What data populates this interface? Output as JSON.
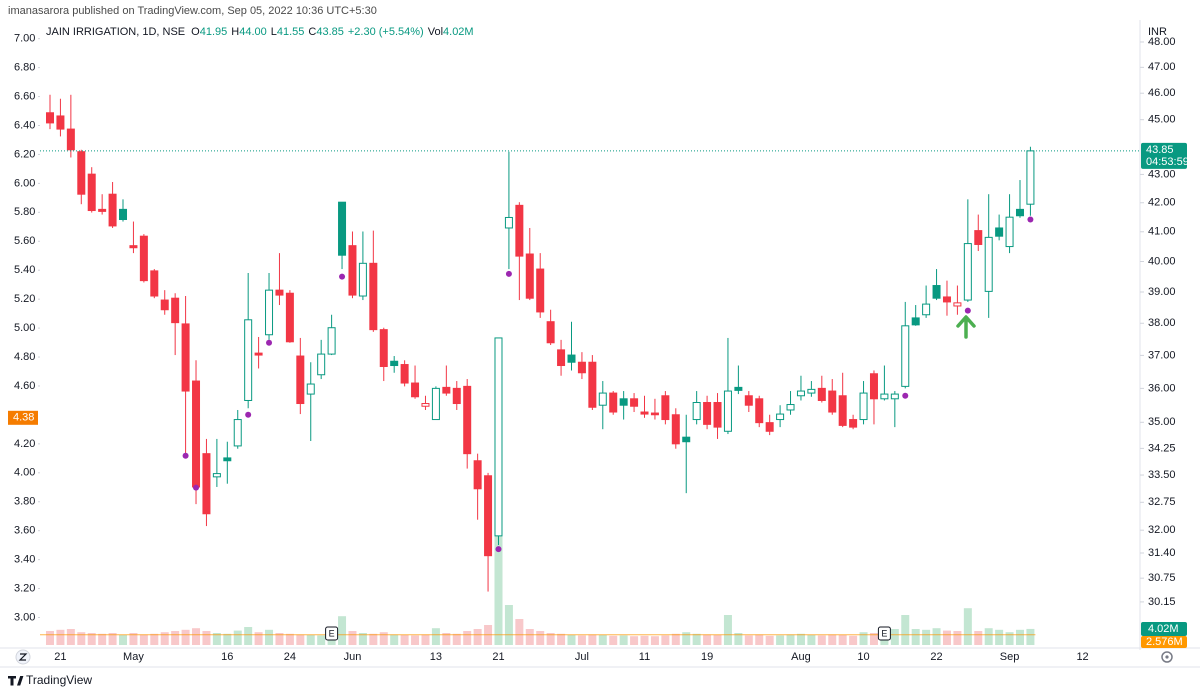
{
  "header": {
    "author_line": "imanasarora published on TradingView.com, Sep 05, 2022 10:36 UTC+5:30",
    "footer": "TradingView"
  },
  "chart_data": {
    "type": "candlestick",
    "title": "JAIN IRRIGATION, 1D, NSE",
    "legend": [
      {
        "key": "O",
        "value": "41.95"
      },
      {
        "key": "H",
        "value": "44.00"
      },
      {
        "key": "L",
        "value": "41.55"
      },
      {
        "key": "C",
        "value": "43.85"
      }
    ],
    "change": "+2.30 (+5.54%)",
    "volume_legend": {
      "key": "Vol",
      "value": "4.02M"
    },
    "categories": [
      null,
      "21",
      null,
      null,
      null,
      null,
      null,
      null,
      "May",
      null,
      null,
      null,
      null,
      null,
      null,
      null,
      null,
      "16",
      null,
      null,
      null,
      null,
      null,
      "24",
      null,
      null,
      null,
      null,
      null,
      "Jun",
      null,
      null,
      null,
      null,
      null,
      null,
      null,
      "13",
      null,
      null,
      null,
      null,
      null,
      "21",
      null,
      null,
      null,
      null,
      null,
      null,
      null,
      "Jul",
      null,
      null,
      null,
      null,
      null,
      "11",
      null,
      null,
      null,
      null,
      null,
      "19",
      null,
      null,
      null,
      null,
      null,
      null,
      null,
      null,
      "Aug",
      null,
      null,
      null,
      null,
      null,
      "10",
      null,
      null,
      null,
      null,
      null,
      null,
      "22",
      null,
      null,
      null,
      null,
      null,
      null,
      "Sep",
      null,
      null,
      null,
      null,
      null,
      null,
      "12"
    ],
    "open": [
      45.26,
      45.14,
      44.65,
      43.82,
      43.01,
      41.77,
      42.3,
      41.77,
      40.53,
      40.85,
      39.69,
      38.74,
      38.8,
      37.98,
      36.22,
      34.1,
      33.45,
      33.98,
      34.32,
      35.64,
      37.07,
      37.64,
      39.06,
      38.96,
      36.98,
      35.83,
      36.41,
      37.04,
      42.02,
      40.53,
      38.87,
      39.94,
      37.8,
      36.82,
      36.72,
      36.16,
      35.47,
      35.08,
      36.03,
      36.0,
      36.06,
      33.9,
      33.48,
      31.85,
      41.13,
      41.91,
      40.25,
      39.75,
      38.05,
      37.17,
      37.01,
      36.79,
      36.79,
      35.5,
      35.86,
      35.69,
      35.69,
      35.3,
      35.27,
      35.78,
      35.22,
      34.57,
      35.08,
      35.58,
      35.58,
      34.74,
      36.03,
      35.78,
      35.69,
      34.99,
      35.08,
      35.36,
      35.78,
      35.86,
      36.0,
      35.92,
      35.78,
      35.08,
      35.08,
      36.44,
      35.69,
      35.69,
      36.06,
      38.17,
      38.27,
      39.21,
      38.84,
      38.55,
      38.74,
      41.04,
      39.02,
      41.13,
      40.5,
      41.77,
      41.95,
      null,
      null,
      null,
      null,
      null
    ],
    "high": [
      45.94,
      45.79,
      45.94,
      43.89,
      43.26,
      42.3,
      42.73,
      42.12,
      41.35,
      40.92,
      39.75,
      39.06,
      38.96,
      38.87,
      36.85,
      34.52,
      34.52,
      34.44,
      35.36,
      39.62,
      37.57,
      39.62,
      40.28,
      39.06,
      37.54,
      36.79,
      37.48,
      38.27,
      42.02,
      41.01,
      41.01,
      41.04,
      37.86,
      36.98,
      36.85,
      36.69,
      35.78,
      36.06,
      36.69,
      36.22,
      36.28,
      34.1,
      33.56,
      37.54,
      43.82,
      42.02,
      41.13,
      40.28,
      38.43,
      37.48,
      38.05,
      37.1,
      37.01,
      36.22,
      35.92,
      35.92,
      35.86,
      35.78,
      35.69,
      35.92,
      35.41,
      35.22,
      35.92,
      35.78,
      35.86,
      37.54,
      36.69,
      35.92,
      35.78,
      35.22,
      35.5,
      35.92,
      36.38,
      36.22,
      36.38,
      36.28,
      36.47,
      35.22,
      36.22,
      36.54,
      36.69,
      35.92,
      38.68,
      38.58,
      39.21,
      39.75,
      39.37,
      39.21,
      42.12,
      41.59,
      42.3,
      41.59,
      42.3,
      42.8,
      44.0,
      null,
      null,
      null,
      null,
      null
    ],
    "low": [
      44.65,
      44.38,
      43.61,
      41.95,
      41.66,
      41.59,
      41.13,
      41.35,
      40.28,
      39.31,
      38.8,
      38.27,
      37.01,
      34.1,
      32.7,
      32.11,
      33.17,
      33.26,
      34.24,
      35.41,
      36.6,
      37.48,
      38.58,
      37.39,
      35.24,
      34.46,
      36.28,
      37.01,
      39.75,
      38.8,
      38.74,
      37.73,
      36.22,
      36.47,
      36.06,
      35.69,
      35.36,
      35.08,
      35.78,
      35.36,
      33.68,
      32.28,
      30.41,
      31.61,
      39.75,
      38.74,
      38.74,
      38.17,
      37.32,
      36.38,
      36.54,
      36.28,
      35.36,
      34.8,
      35.22,
      35.08,
      35.3,
      35.13,
      35.08,
      34.94,
      34.24,
      33.0,
      34.94,
      34.8,
      34.52,
      34.66,
      35.83,
      35.3,
      34.86,
      34.63,
      34.86,
      35.22,
      35.64,
      35.75,
      35.58,
      35.22,
      34.86,
      34.8,
      34.94,
      34.94,
      35.64,
      34.86,
      36.0,
      37.92,
      38.17,
      38.74,
      38.24,
      38.27,
      38.68,
      40.35,
      38.17,
      40.71,
      40.28,
      41.48,
      41.55,
      null,
      null,
      null,
      null,
      null
    ],
    "close": [
      44.88,
      44.65,
      43.89,
      42.3,
      41.73,
      41.7,
      41.2,
      41.42,
      40.46,
      39.37,
      38.87,
      38.43,
      38.02,
      35.92,
      33.17,
      32.44,
      33.54,
      33.9,
      35.08,
      38.11,
      37.01,
      39.06,
      38.9,
      37.42,
      35.55,
      36.13,
      37.04,
      37.86,
      40.21,
      38.9,
      39.94,
      37.8,
      36.66,
      36.69,
      36.16,
      35.75,
      35.55,
      36.0,
      35.86,
      35.55,
      34.1,
      33.12,
      31.33,
      37.54,
      41.49,
      40.18,
      38.8,
      38.36,
      37.39,
      36.69,
      36.79,
      36.47,
      35.44,
      35.86,
      35.3,
      35.5,
      35.47,
      35.24,
      35.22,
      35.08,
      34.38,
      34.44,
      35.58,
      34.94,
      34.86,
      35.92,
      35.94,
      35.5,
      34.99,
      34.74,
      35.24,
      35.52,
      35.92,
      35.97,
      35.64,
      35.3,
      34.91,
      34.86,
      35.86,
      35.69,
      35.83,
      35.83,
      37.92,
      37.95,
      38.61,
      38.8,
      38.68,
      38.65,
      40.6,
      40.57,
      40.81,
      40.85,
      41.5,
      41.55,
      43.85,
      null,
      null,
      null,
      null,
      null
    ],
    "up_color": "#089981",
    "down_color": "#f23645",
    "ylim": [
      29.09,
      48.48
    ],
    "log_scale": true,
    "y_unit": "INR",
    "yticks": [
      {
        "value": 48,
        "label": "48.00"
      },
      {
        "value": 47,
        "label": "47.00"
      },
      {
        "value": 46,
        "label": "46.00"
      },
      {
        "value": 45,
        "label": "45.00"
      },
      {
        "value": 43,
        "label": "43.00"
      },
      {
        "value": 42,
        "label": "42.00"
      },
      {
        "value": 41,
        "label": "41.00"
      },
      {
        "value": 40,
        "label": "40.00"
      },
      {
        "value": 39,
        "label": "39.00"
      },
      {
        "value": 38,
        "label": "38.00"
      },
      {
        "value": 37,
        "label": "37.00"
      },
      {
        "value": 36,
        "label": "36.00"
      },
      {
        "value": 35,
        "label": "35.00"
      },
      34.25,
      {
        "value": 33.5,
        "label": "33.50"
      },
      32.75,
      {
        "value": 32,
        "label": "32.00"
      },
      {
        "value": 31.4,
        "label": "31.40"
      },
      30.75,
      30.15
    ],
    "y2lim": [
      2.81,
      7.06
    ],
    "y2ticks": [
      {
        "value": 7,
        "label": "7.00"
      },
      {
        "value": 6.8,
        "label": "6.80"
      },
      {
        "value": 6.6,
        "label": "6.60"
      },
      {
        "value": 6.4,
        "label": "6.40"
      },
      {
        "value": 6.2,
        "label": "6.20"
      },
      {
        "value": 6,
        "label": "6.00"
      },
      {
        "value": 5.8,
        "label": "5.80"
      },
      {
        "value": 5.6,
        "label": "5.60"
      },
      {
        "value": 5.4,
        "label": "5.40"
      },
      {
        "value": 5.2,
        "label": "5.20"
      },
      {
        "value": 5,
        "label": "5.00"
      },
      {
        "value": 4.8,
        "label": "4.80"
      },
      {
        "value": 4.6,
        "label": "4.60"
      },
      {
        "value": 4.2,
        "label": "4.20"
      },
      {
        "value": 4,
        "label": "4.00"
      },
      {
        "value": 3.8,
        "label": "3.80"
      },
      {
        "value": 3.6,
        "label": "3.60"
      },
      {
        "value": 3.4,
        "label": "3.40"
      },
      {
        "value": 3.2,
        "label": "3.20"
      },
      {
        "value": 3,
        "label": "3.00"
      }
    ],
    "y2_marker": 4.38,
    "y2_marker_color": "#f57c00",
    "markers": {
      "x": [
        13,
        14,
        19,
        21,
        28,
        43,
        44,
        82,
        88,
        94
      ],
      "values": [
        34.04,
        33.15,
        35.22,
        37.39,
        39.5,
        31.5,
        39.59,
        35.78,
        38.4,
        41.42
      ],
      "color": "#9c27b0"
    },
    "countdown": "04:53:59",
    "volume": {
      "values": [
        3.5,
        3.8,
        4,
        3.2,
        3,
        2.8,
        3,
        2.5,
        3,
        2.6,
        2.8,
        3.2,
        3.5,
        3.8,
        4.2,
        3.5,
        3,
        2.8,
        3.6,
        4.5,
        3.2,
        3.8,
        3,
        2.8,
        2.6,
        2.5,
        2.4,
        2.8,
        7.2,
        3.5,
        3,
        2.8,
        3.2,
        2.6,
        2.5,
        2.4,
        2.6,
        4.2,
        3,
        2.8,
        3.5,
        4,
        5,
        39,
        10,
        6.5,
        4,
        3.5,
        3,
        2.8,
        2.5,
        2.4,
        2.6,
        2.5,
        2.3,
        2.4,
        2.2,
        2.3,
        2.2,
        2.4,
        2.8,
        3.2,
        2.8,
        2.6,
        2.5,
        7.5,
        3,
        2.4,
        2.6,
        2.3,
        2.4,
        2.6,
        2.8,
        2.5,
        2.4,
        2.6,
        2.5,
        2.3,
        3.2,
        3,
        2.8,
        4,
        7.5,
        4,
        3.8,
        4.2,
        3.6,
        3.5,
        9.2,
        3.5,
        4.2,
        3.8,
        3.2,
        3.8,
        4.02,
        null,
        null,
        null,
        null,
        null
      ],
      "ylim": [
        0,
        40
      ],
      "up_color": "#c3e6d2",
      "down_color": "#f8c8ca",
      "last_label": "4.02M",
      "ma": 2.576,
      "ma_label": "2.576M",
      "ma_color": "#ff9800"
    },
    "events": {
      "x": [
        27,
        80
      ],
      "labels": [
        "E",
        "E"
      ]
    },
    "grid": false
  }
}
